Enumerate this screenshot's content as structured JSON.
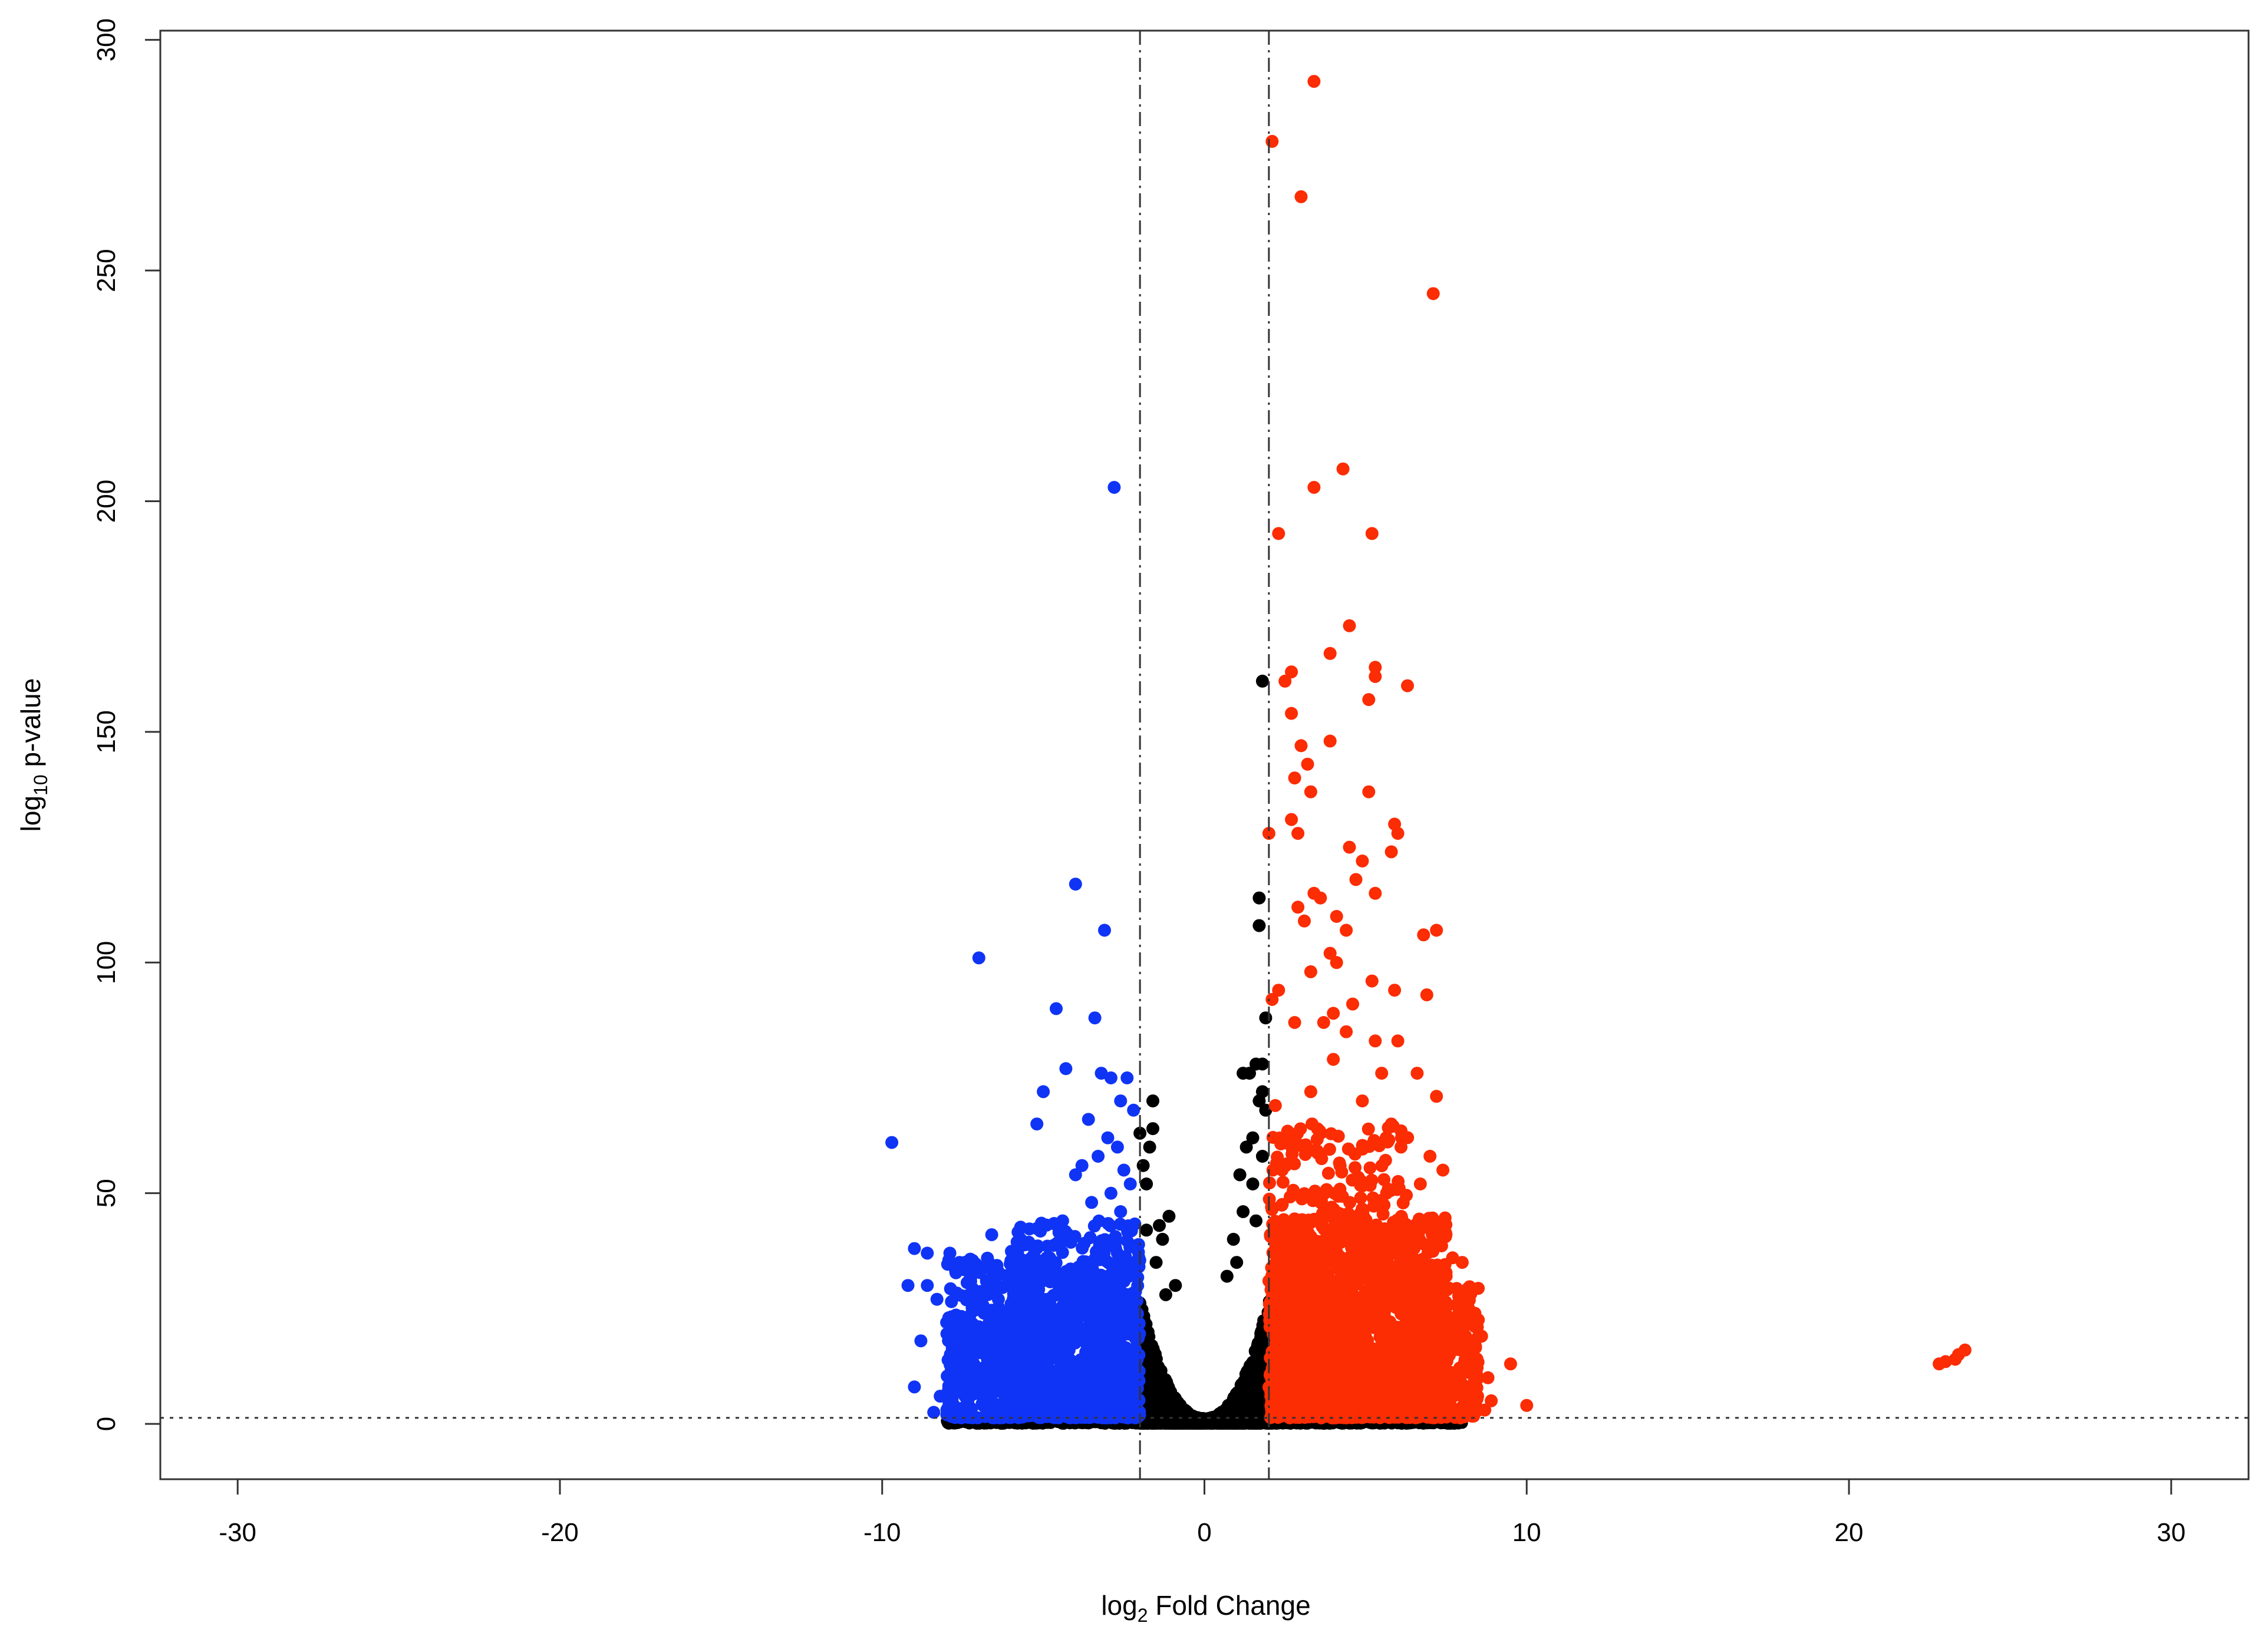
{
  "chart_data": {
    "type": "scatter",
    "title": "",
    "xlabel": {
      "base": "log",
      "sub": "2",
      "rest": " Fold Change"
    },
    "ylabel": {
      "base": "log",
      "sub": "10",
      "rest": " p-value"
    },
    "xlim": [
      -32.4,
      32.4
    ],
    "ylim": [
      -12,
      302
    ],
    "x_ticks": [
      -30,
      -20,
      -10,
      0,
      10,
      20,
      30
    ],
    "x_tick_labels": [
      "-30",
      "-20",
      "-10",
      "0",
      "10",
      "20",
      "30"
    ],
    "y_ticks": [
      0,
      50,
      100,
      150,
      200,
      250,
      300
    ],
    "y_tick_labels": [
      "0",
      "50",
      "100",
      "150",
      "200",
      "250",
      "300"
    ],
    "grid": false,
    "legend": "none",
    "reference_lines": {
      "fold_change_thresholds": [
        -2,
        2
      ],
      "pvalue_threshold": 1.3
    },
    "colors": {
      "down": "#1034f5",
      "not_significant": "#000000",
      "up": "#fc2c03",
      "threshold_line": "#333333"
    },
    "series": [
      {
        "key": "down",
        "color": "#1034f5",
        "points": [
          [
            -2.8,
            203
          ],
          [
            -4.0,
            117
          ],
          [
            -3.1,
            107
          ],
          [
            -7.0,
            101
          ],
          [
            -4.6,
            90
          ],
          [
            -3.4,
            88
          ],
          [
            -4.3,
            77
          ],
          [
            -3.2,
            76
          ],
          [
            -2.9,
            75
          ],
          [
            -2.4,
            75
          ],
          [
            -5.0,
            72
          ],
          [
            -2.6,
            70
          ],
          [
            -2.2,
            68
          ],
          [
            -3.6,
            66
          ],
          [
            -5.2,
            65
          ],
          [
            -3.0,
            62
          ],
          [
            -9.7,
            61
          ],
          [
            -2.7,
            60
          ],
          [
            -3.3,
            58
          ],
          [
            -3.8,
            56
          ],
          [
            -2.5,
            55
          ],
          [
            -4.0,
            54
          ],
          [
            -2.3,
            52
          ],
          [
            -2.9,
            50
          ],
          [
            -3.5,
            48
          ],
          [
            -2.6,
            46
          ],
          [
            -4.4,
            44
          ],
          [
            -6.6,
            41
          ],
          [
            -5.7,
            40
          ],
          [
            -9.0,
            38
          ],
          [
            -7.9,
            37
          ],
          [
            -8.6,
            37
          ],
          [
            -7.6,
            35
          ],
          [
            -4.8,
            36
          ],
          [
            -3.9,
            34
          ],
          [
            -6.4,
            33
          ],
          [
            -9.2,
            30
          ],
          [
            -8.6,
            30
          ],
          [
            -7.2,
            28
          ],
          [
            -5.5,
            30
          ],
          [
            -4.2,
            31
          ],
          [
            -3.0,
            32
          ],
          [
            -8.3,
            27
          ],
          [
            -6.0,
            26
          ],
          [
            -5.1,
            27
          ],
          [
            -2.4,
            28
          ],
          [
            -8.8,
            18
          ],
          [
            -7.7,
            16
          ],
          [
            -7.4,
            14
          ],
          [
            -6.8,
            20
          ],
          [
            -6.1,
            17
          ],
          [
            -5.3,
            22
          ],
          [
            -4.6,
            24
          ],
          [
            -3.7,
            25
          ],
          [
            -9.0,
            8
          ],
          [
            -8.2,
            6
          ],
          [
            -7.9,
            4
          ],
          [
            -7.3,
            2
          ],
          [
            -8.4,
            2.5
          ],
          [
            -6.9,
            6
          ],
          [
            -6.2,
            8
          ],
          [
            -5.6,
            11
          ],
          [
            -4.9,
            14
          ],
          [
            -4.2,
            16
          ],
          [
            -3.6,
            19
          ],
          [
            -3.0,
            21
          ],
          [
            -2.5,
            23
          ],
          [
            -2.2,
            15
          ],
          [
            -2.1,
            8
          ],
          [
            -2.3,
            4
          ]
        ],
        "clusters": [
          {
            "xmin": -8.0,
            "xmax": -2.0,
            "ymin": 1.3,
            "ymax": 36,
            "count": 900
          },
          {
            "xmin": -6.0,
            "xmax": -2.0,
            "ymin": 1.3,
            "ymax": 44,
            "count": 500
          }
        ]
      },
      {
        "key": "not_significant",
        "color": "#000000",
        "points": [
          [
            1.8,
            161
          ],
          [
            1.7,
            114
          ],
          [
            1.7,
            108
          ],
          [
            1.9,
            88
          ],
          [
            1.8,
            78
          ],
          [
            1.6,
            78
          ],
          [
            1.2,
            76
          ],
          [
            1.4,
            76
          ],
          [
            1.8,
            72
          ],
          [
            1.7,
            70
          ],
          [
            1.9,
            68
          ],
          [
            -1.6,
            70
          ],
          [
            -2.0,
            63
          ],
          [
            -1.7,
            60
          ],
          [
            -1.6,
            64
          ],
          [
            -1.9,
            56
          ],
          [
            -1.8,
            52
          ],
          [
            1.5,
            62
          ],
          [
            1.3,
            60
          ],
          [
            1.8,
            58
          ],
          [
            1.1,
            54
          ],
          [
            1.5,
            52
          ],
          [
            1.2,
            46
          ],
          [
            1.6,
            44
          ],
          [
            -1.1,
            45
          ],
          [
            -1.4,
            43
          ],
          [
            -1.3,
            40
          ],
          [
            -1.8,
            42
          ],
          [
            0.9,
            40
          ],
          [
            1.0,
            35
          ],
          [
            0.7,
            32
          ],
          [
            -0.9,
            30
          ],
          [
            -1.5,
            35
          ],
          [
            -1.2,
            28
          ]
        ],
        "volcano_fill": {
          "xmin": -2.0,
          "xmax": 2.0,
          "count": 2600
        },
        "baseline_fill": {
          "xmin": -8.0,
          "xmax": 8.0,
          "ymax": 1.3,
          "count": 1400
        }
      },
      {
        "key": "up",
        "color": "#fc2c03",
        "points": [
          [
            3.4,
            291
          ],
          [
            2.1,
            278
          ],
          [
            3.0,
            266
          ],
          [
            7.1,
            245
          ],
          [
            4.3,
            207
          ],
          [
            3.4,
            203
          ],
          [
            2.3,
            193
          ],
          [
            5.2,
            193
          ],
          [
            4.5,
            173
          ],
          [
            3.9,
            167
          ],
          [
            5.3,
            164
          ],
          [
            2.7,
            163
          ],
          [
            2.5,
            161
          ],
          [
            6.3,
            160
          ],
          [
            5.3,
            162
          ],
          [
            5.1,
            157
          ],
          [
            2.7,
            154
          ],
          [
            3.9,
            148
          ],
          [
            3.0,
            147
          ],
          [
            3.2,
            143
          ],
          [
            2.8,
            140
          ],
          [
            5.1,
            137
          ],
          [
            3.3,
            137
          ],
          [
            2.7,
            131
          ],
          [
            5.9,
            130
          ],
          [
            6.0,
            128
          ],
          [
            2.9,
            128
          ],
          [
            2.0,
            128
          ],
          [
            4.5,
            125
          ],
          [
            4.9,
            122
          ],
          [
            5.8,
            124
          ],
          [
            4.7,
            118
          ],
          [
            5.3,
            115
          ],
          [
            3.4,
            115
          ],
          [
            3.6,
            114
          ],
          [
            2.9,
            112
          ],
          [
            3.1,
            109
          ],
          [
            4.1,
            110
          ],
          [
            4.4,
            107
          ],
          [
            7.2,
            107
          ],
          [
            6.8,
            106
          ],
          [
            3.9,
            102
          ],
          [
            4.1,
            100
          ],
          [
            3.3,
            98
          ],
          [
            5.2,
            96
          ],
          [
            5.9,
            94
          ],
          [
            2.3,
            94
          ],
          [
            2.1,
            92
          ],
          [
            4.0,
            89
          ],
          [
            6.9,
            93
          ],
          [
            4.6,
            91
          ],
          [
            3.7,
            87
          ],
          [
            2.8,
            87
          ],
          [
            5.3,
            83
          ],
          [
            6.0,
            83
          ],
          [
            4.4,
            85
          ],
          [
            7.2,
            71
          ],
          [
            5.5,
            76
          ],
          [
            4.0,
            79
          ],
          [
            6.6,
            76
          ],
          [
            3.3,
            72
          ],
          [
            4.9,
            70
          ],
          [
            2.2,
            69
          ],
          [
            5.8,
            65
          ],
          [
            6.1,
            60
          ],
          [
            7.0,
            58
          ],
          [
            7.4,
            55
          ],
          [
            6.7,
            52
          ],
          [
            7.7,
            36
          ],
          [
            8.0,
            35
          ],
          [
            7.5,
            32
          ],
          [
            8.2,
            25
          ],
          [
            7.9,
            22
          ],
          [
            8.6,
            19
          ],
          [
            8.4,
            10
          ],
          [
            8.8,
            10
          ],
          [
            9.5,
            13
          ],
          [
            8.9,
            5
          ],
          [
            10.0,
            4
          ],
          [
            8.7,
            3
          ],
          [
            7.1,
            8
          ],
          [
            23.6,
            16
          ],
          [
            23.4,
            15
          ],
          [
            23.3,
            14
          ],
          [
            23.0,
            13.5
          ],
          [
            22.8,
            13
          ]
        ],
        "clusters": [
          {
            "xmin": 2.0,
            "xmax": 7.5,
            "ymin": 1.3,
            "ymax": 45,
            "count": 1600
          },
          {
            "xmin": 2.0,
            "xmax": 6.5,
            "ymin": 1.3,
            "ymax": 65,
            "count": 600
          },
          {
            "xmin": 6.5,
            "xmax": 8.5,
            "ymin": 1.3,
            "ymax": 30,
            "count": 250
          }
        ]
      }
    ]
  }
}
